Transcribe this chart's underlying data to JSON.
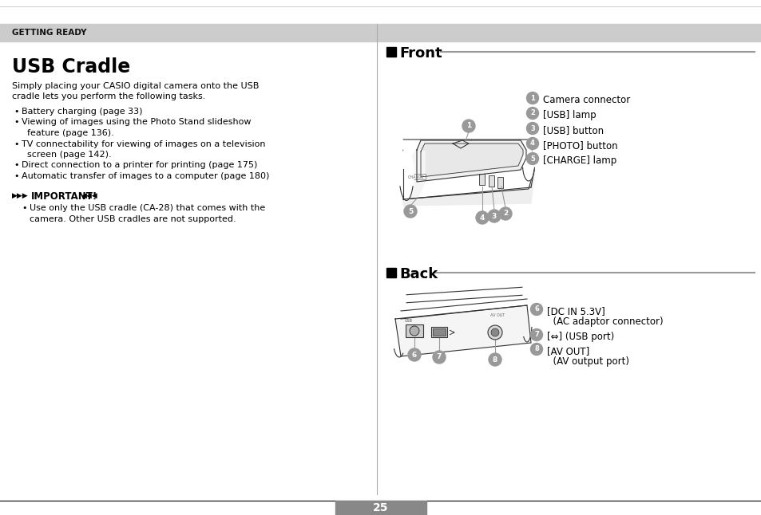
{
  "bg_color": "#ffffff",
  "header_bg": "#cccccc",
  "header_text": "GETTING READY",
  "title": "USB Cradle",
  "left_col": {
    "intro_line1": "Simply placing your CASIO digital camera onto the USB",
    "intro_line2": "cradle lets you perform the following tasks.",
    "bullets": [
      "Battery charging (page 33)",
      "Viewing of images using the Photo Stand slideshow",
      "  feature (page 136).",
      "TV connectability for viewing of images on a television",
      "  screen (page 142).",
      "Direct connection to a printer for printing (page 175)",
      "Automatic transfer of images to a computer (page 180)"
    ],
    "bullet_flags": [
      true,
      true,
      false,
      true,
      false,
      true,
      true
    ],
    "important_title": "IMPORTANT!",
    "important_text_1": "Use only the USB cradle (CA-28) that comes with the",
    "important_text_2": "camera. Other USB cradles are not supported."
  },
  "right_col": {
    "front_label": "Front",
    "back_label": "Back",
    "front_items": [
      "Camera connector",
      "[USB] lamp",
      "[USB] button",
      "[PHOTO] button",
      "[CHARGE] lamp"
    ],
    "back_item_6_line1": "[DC IN 5.3V]",
    "back_item_6_line2": "  (AC adaptor connector)",
    "back_item_7": "[⇔] (USB port)",
    "back_item_8_line1": "[AV OUT]",
    "back_item_8_line2": "  (AV output port)"
  },
  "page_number": "25",
  "divider_color": "#aaaaaa",
  "circle_color": "#999999",
  "header_line_color": "#999999",
  "section_line_color": "#999999"
}
